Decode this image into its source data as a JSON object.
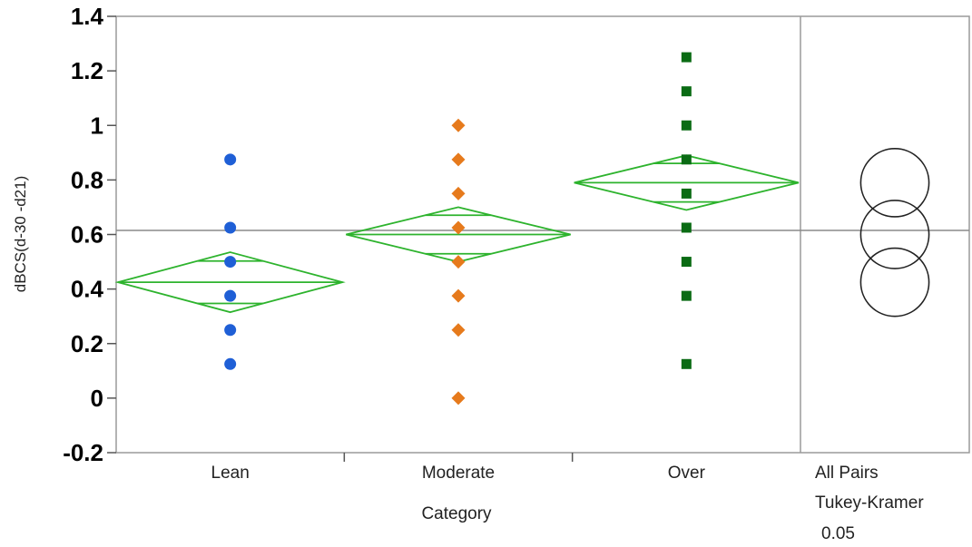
{
  "chart_data": {
    "type": "scatter",
    "title": "",
    "xlabel": "Category",
    "ylabel": "dBCS(d-30 -d21)",
    "ylim": [
      -0.2,
      1.4
    ],
    "yticks": [
      "-0.2",
      "0",
      "0.2",
      "0.4",
      "0.6",
      "0.8",
      "1",
      "1.2",
      "1.4"
    ],
    "categories": [
      "Lean",
      "Moderate",
      "Over"
    ],
    "grand_mean": 0.615,
    "grid": false,
    "series": [
      {
        "category": "Lean",
        "marker": "circle",
        "color": "#1f5fd6",
        "values": [
          0.125,
          0.25,
          0.375,
          0.5,
          0.625,
          0.875
        ],
        "mean_diamond": {
          "mean": 0.425,
          "lower": 0.315,
          "upper": 0.535
        }
      },
      {
        "category": "Moderate",
        "marker": "diamond",
        "color": "#e67a1c",
        "values": [
          0.0,
          0.25,
          0.375,
          0.5,
          0.625,
          0.75,
          0.875,
          1.0
        ],
        "mean_diamond": {
          "mean": 0.6,
          "lower": 0.5,
          "upper": 0.7
        }
      },
      {
        "category": "Over",
        "marker": "square",
        "color": "#0a6b14",
        "values": [
          0.125,
          0.375,
          0.5,
          0.625,
          0.75,
          0.875,
          1.0,
          1.125,
          1.25
        ],
        "mean_diamond": {
          "mean": 0.79,
          "lower": 0.69,
          "upper": 0.89
        }
      }
    ],
    "diamond_color": "#2db32d",
    "comparison": {
      "labels": [
        "All Pairs",
        "Tukey-Kramer",
        "0.05"
      ],
      "circles": [
        {
          "center": 0.79,
          "radius": 0.125
        },
        {
          "center": 0.6,
          "radius": 0.125
        },
        {
          "center": 0.425,
          "radius": 0.125
        }
      ]
    }
  }
}
